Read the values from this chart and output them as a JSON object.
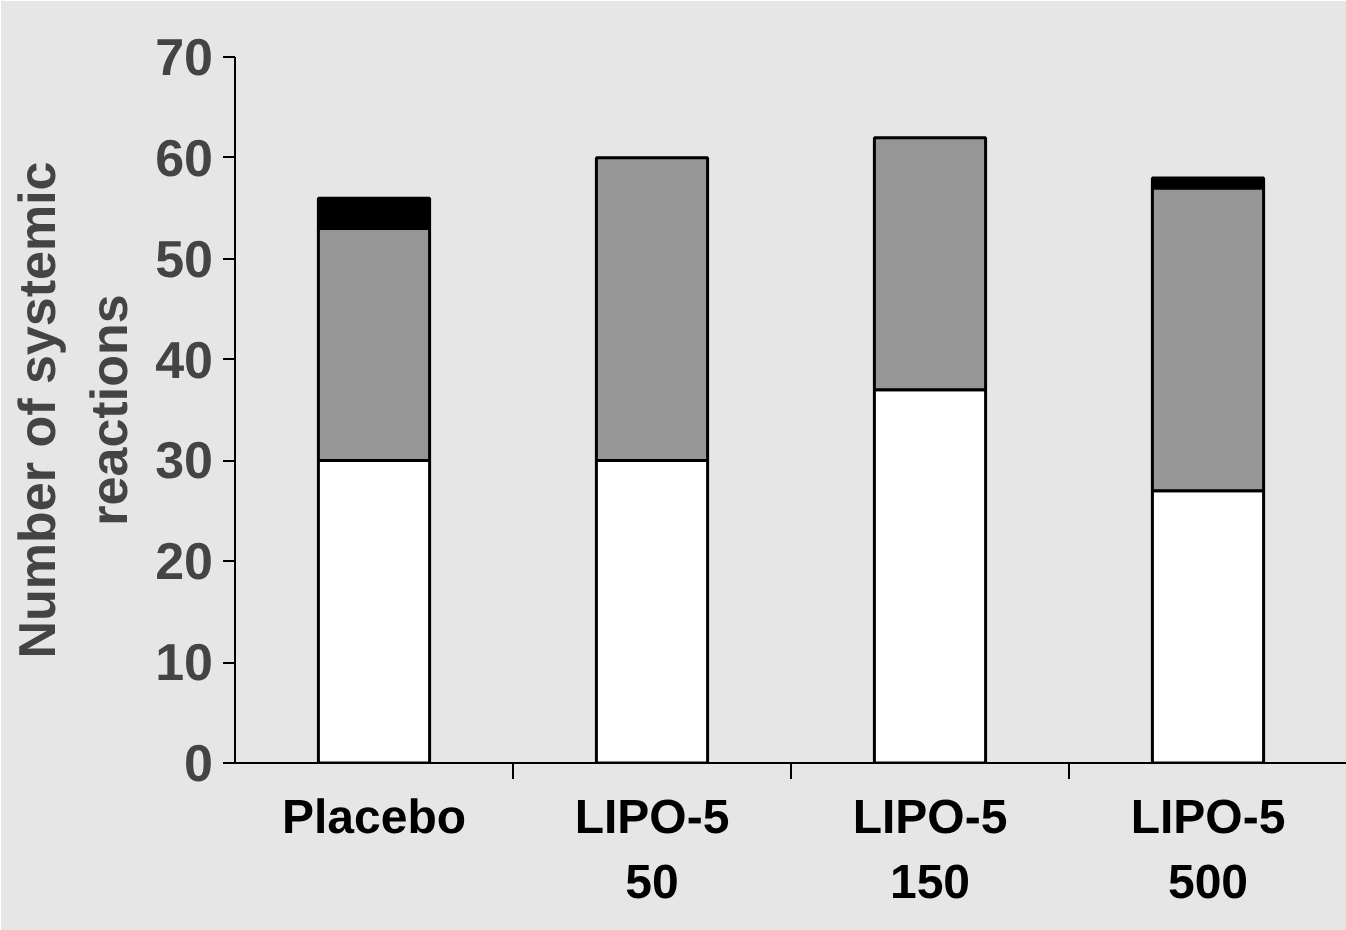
{
  "chart_data": {
    "type": "bar",
    "stacked": true,
    "ylabel": "Number of systemic\nreactions",
    "categories": [
      "Placebo",
      "LIPO-5\n50",
      "LIPO-5\n150",
      "LIPO-5\n500"
    ],
    "series": [
      {
        "color": "#ffffff",
        "values": [
          30,
          30,
          37,
          27
        ]
      },
      {
        "color": "#969696",
        "values": [
          23,
          30,
          25,
          30
        ]
      },
      {
        "color": "#000000",
        "values": [
          3,
          0,
          0,
          1
        ]
      }
    ],
    "ylim": [
      0,
      70
    ],
    "yticks": [
      0,
      10,
      20,
      30,
      40,
      50,
      60,
      70
    ]
  }
}
